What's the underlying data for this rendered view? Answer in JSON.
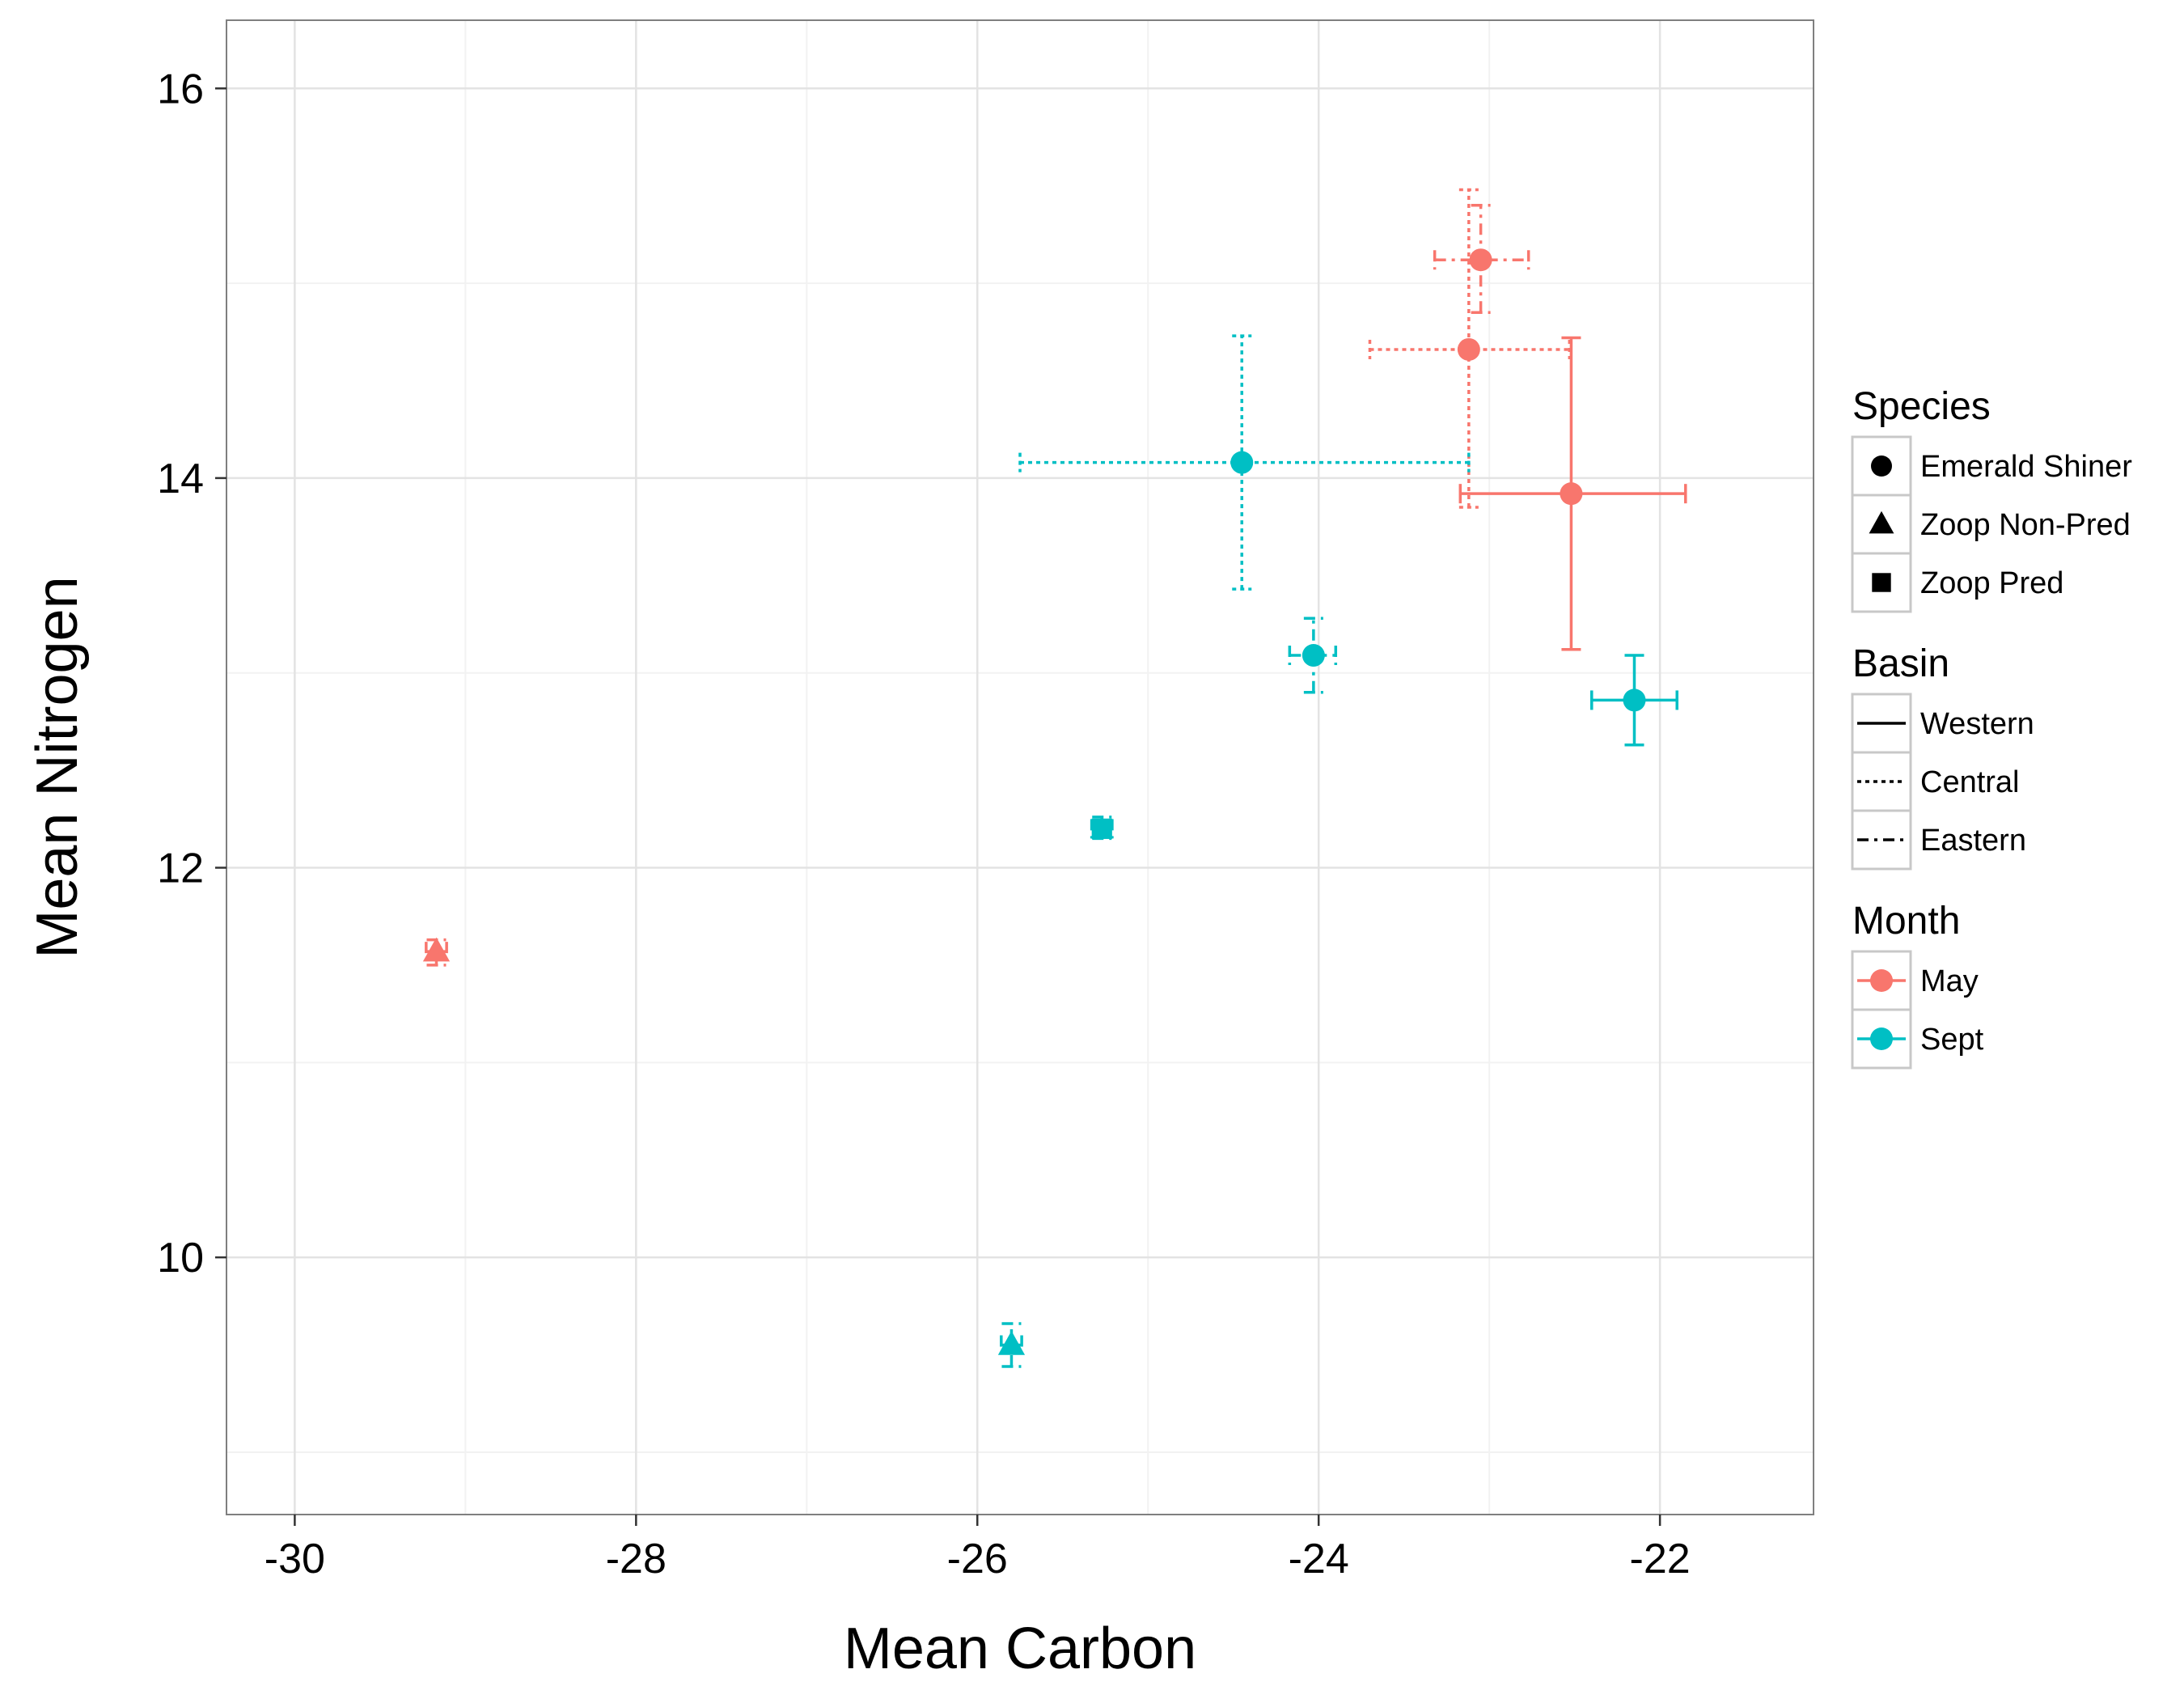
{
  "chart_data": {
    "type": "scatter",
    "title": "",
    "xlabel": "Mean Carbon",
    "ylabel": "Mean Nitrogen",
    "xlim": [
      -30.4,
      -21.1
    ],
    "ylim": [
      8.68,
      16.35
    ],
    "x_ticks": [
      -30,
      -28,
      -26,
      -24,
      -22
    ],
    "y_ticks": [
      10,
      12,
      14,
      16
    ],
    "grid": true,
    "legend_position": "right",
    "colors": {
      "May": "#F8766D",
      "Sept": "#00BFC4"
    },
    "legend": {
      "species": {
        "title": "Species",
        "items": [
          {
            "label": "Emerald Shiner",
            "shape": "circle"
          },
          {
            "label": "Zoop Non-Pred",
            "shape": "triangle"
          },
          {
            "label": "Zoop Pred",
            "shape": "square"
          }
        ]
      },
      "basin": {
        "title": "Basin",
        "items": [
          {
            "label": "Western",
            "dash": "solid"
          },
          {
            "label": "Central",
            "dash": "dotted"
          },
          {
            "label": "Eastern",
            "dash": "dashed"
          }
        ]
      },
      "month": {
        "title": "Month",
        "items": [
          {
            "label": "May",
            "color": "#F8766D"
          },
          {
            "label": "Sept",
            "color": "#00BFC4"
          }
        ]
      }
    },
    "points": [
      {
        "species": "Emerald Shiner",
        "basin": "Eastern",
        "month": "May",
        "x": -23.05,
        "y": 15.12,
        "xmin": -23.32,
        "xmax": -22.77,
        "ymin": 14.85,
        "ymax": 15.4
      },
      {
        "species": "Emerald Shiner",
        "basin": "Central",
        "month": "May",
        "x": -23.12,
        "y": 14.66,
        "xmin": -23.7,
        "xmax": -22.53,
        "ymin": 13.85,
        "ymax": 15.48
      },
      {
        "species": "Emerald Shiner",
        "basin": "Western",
        "month": "May",
        "x": -22.52,
        "y": 13.92,
        "xmin": -23.17,
        "xmax": -21.85,
        "ymin": 13.12,
        "ymax": 14.72
      },
      {
        "species": "Emerald Shiner",
        "basin": "Central",
        "month": "Sept",
        "x": -24.45,
        "y": 14.08,
        "xmin": -25.75,
        "xmax": -23.12,
        "ymin": 13.43,
        "ymax": 14.73
      },
      {
        "species": "Emerald Shiner",
        "basin": "Eastern",
        "month": "Sept",
        "x": -24.03,
        "y": 13.09,
        "xmin": -24.17,
        "xmax": -23.9,
        "ymin": 12.9,
        "ymax": 13.28
      },
      {
        "species": "Emerald Shiner",
        "basin": "Western",
        "month": "Sept",
        "x": -22.15,
        "y": 12.86,
        "xmin": -22.4,
        "xmax": -21.9,
        "ymin": 12.63,
        "ymax": 13.09
      },
      {
        "species": "Zoop Pred",
        "basin": "Eastern",
        "month": "Sept",
        "x": -25.27,
        "y": 12.2,
        "xmin": -25.33,
        "xmax": -25.21,
        "ymin": 12.15,
        "ymax": 12.26
      },
      {
        "species": "Zoop Non-Pred",
        "basin": "Eastern",
        "month": "May",
        "x": -29.17,
        "y": 11.57,
        "xmin": -29.23,
        "xmax": -29.11,
        "ymin": 11.5,
        "ymax": 11.63
      },
      {
        "species": "Zoop Non-Pred",
        "basin": "Eastern",
        "month": "Sept",
        "x": -25.8,
        "y": 9.55,
        "xmin": -25.86,
        "xmax": -25.74,
        "ymin": 9.44,
        "ymax": 9.66
      }
    ]
  }
}
